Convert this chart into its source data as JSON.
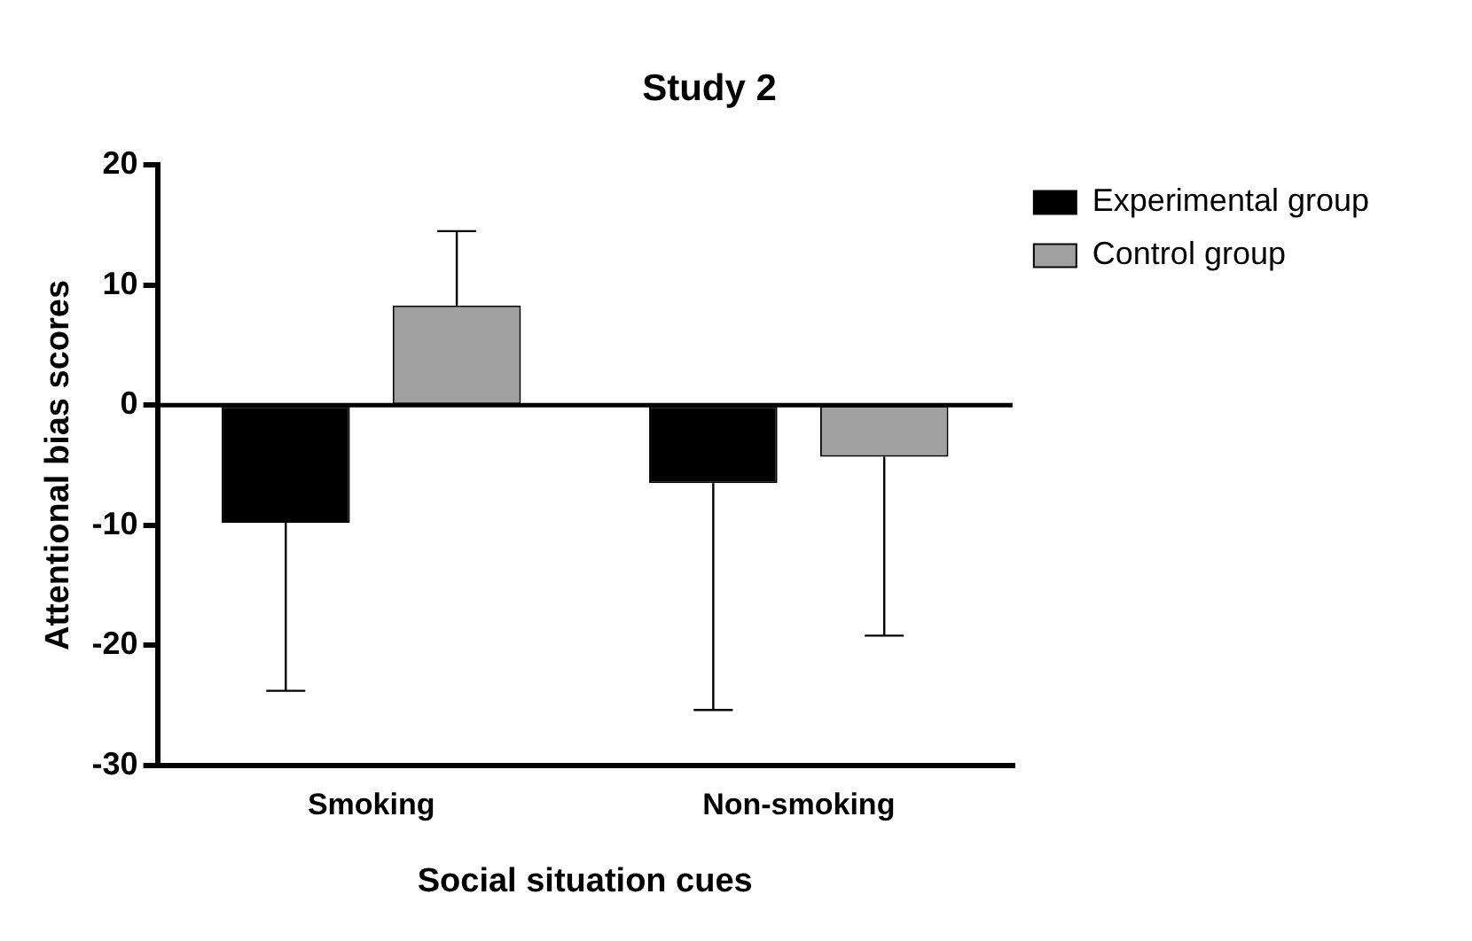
{
  "chart_data": {
    "type": "bar",
    "title": "Study 2",
    "xlabel": "Social situation cues",
    "ylabel": "Attentional bias scores",
    "categories": [
      "Smoking",
      "Non-smoking"
    ],
    "series": [
      {
        "name": "Experimental group",
        "color": "#000000",
        "values": [
          -9.8,
          -6.5
        ],
        "errors": [
          [
            -23.8,
            -9.8
          ],
          [
            -25.4,
            -6.5
          ]
        ]
      },
      {
        "name": "Control group",
        "color": "#a0a0a0",
        "values": [
          8.3,
          -4.3
        ],
        "errors": [
          [
            8.3,
            14.5
          ],
          [
            -19.2,
            -4.3
          ]
        ]
      }
    ],
    "ylim": [
      -30,
      20
    ],
    "yticks": [
      -30,
      -20,
      -10,
      0,
      10,
      20
    ],
    "ref_lines": [
      {
        "axis": "y",
        "value": 0
      }
    ],
    "grid": false,
    "legend": "top right"
  }
}
